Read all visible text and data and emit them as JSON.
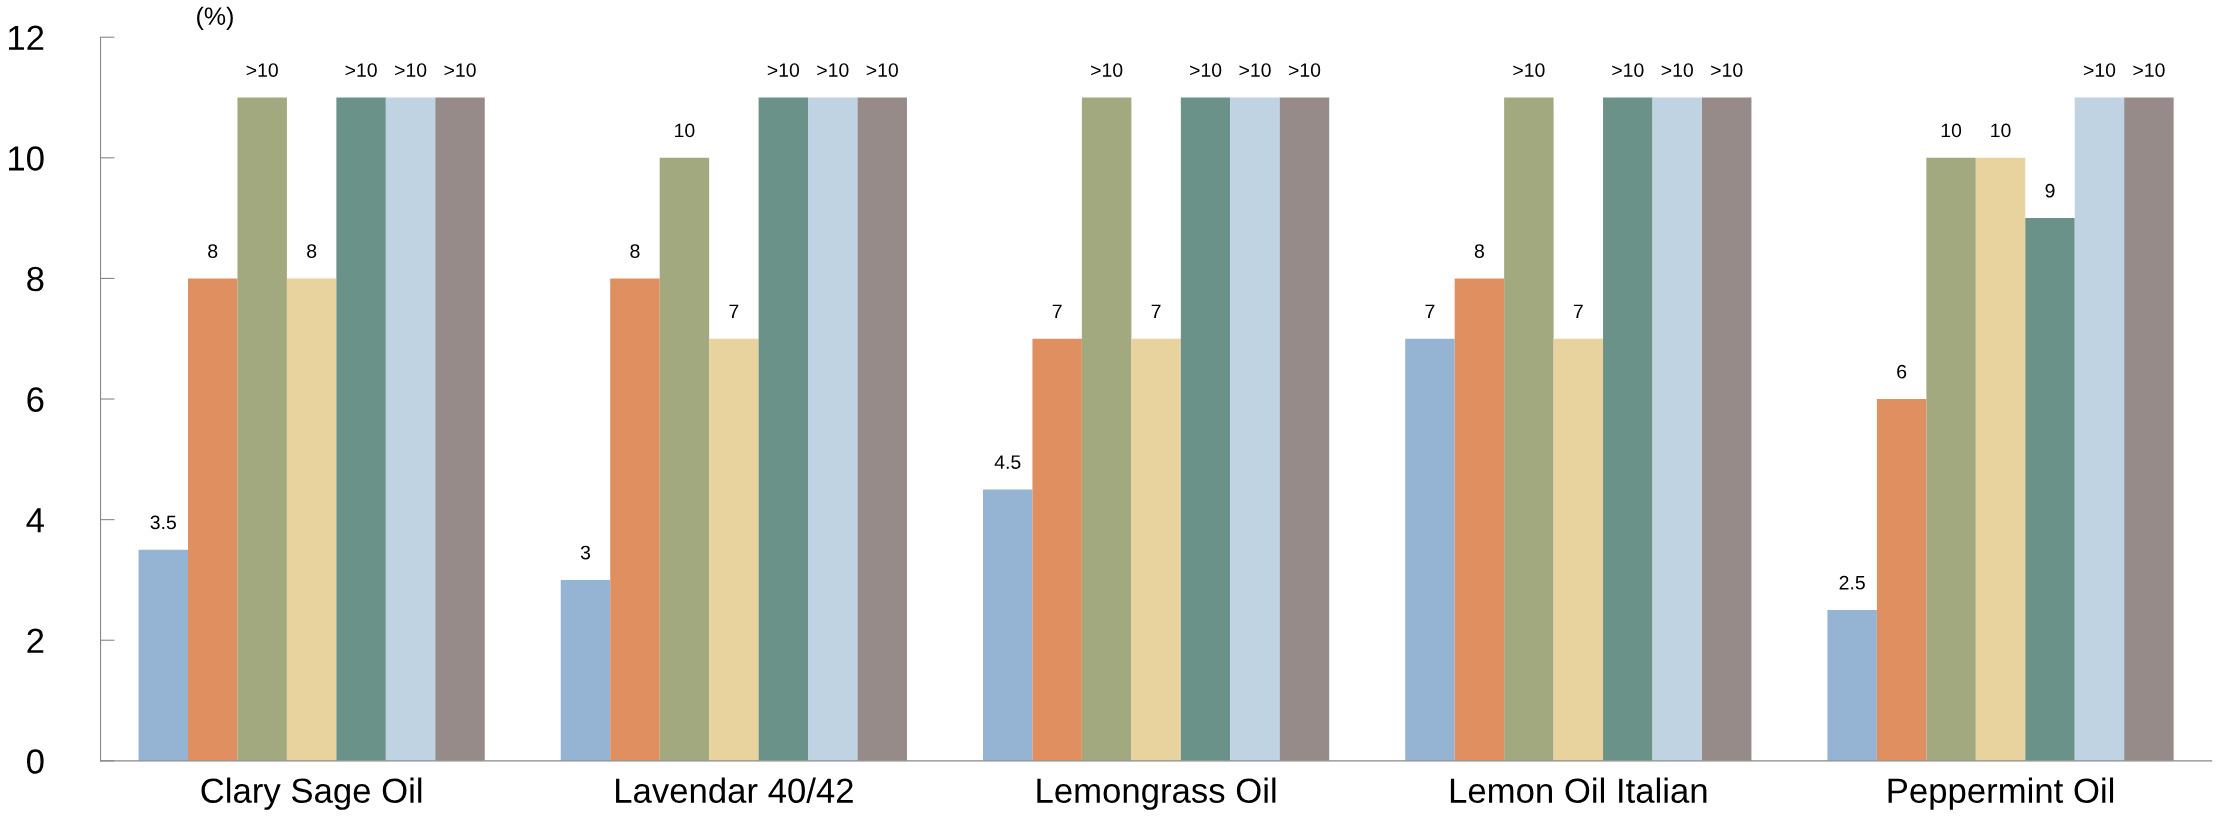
{
  "chart_data": {
    "type": "bar",
    "ylabel": "(%)",
    "categories": [
      "Clary Sage Oil",
      "Lavendar 40/42",
      "Lemongrass Oil",
      "Lemon Oil Italian",
      "Peppermint Oil"
    ],
    "series": [
      {
        "color": "#95b3d2",
        "values": [
          3.5,
          3,
          4.5,
          7,
          2.5
        ],
        "value_labels": [
          "3.5",
          "3",
          "4.5",
          "7",
          "2.5"
        ]
      },
      {
        "color": "#e09060",
        "values": [
          8,
          8,
          7,
          8,
          6
        ],
        "value_labels": [
          "8",
          "8",
          "7",
          "8",
          "6"
        ]
      },
      {
        "color": "#a3a97f",
        "values": [
          11,
          10,
          11,
          11,
          10
        ],
        "value_labels": [
          ">10",
          "10",
          ">10",
          ">10",
          "10"
        ]
      },
      {
        "color": "#e8d29e",
        "values": [
          8,
          7,
          7,
          7,
          10
        ],
        "value_labels": [
          "8",
          "7",
          "7",
          "7",
          "10"
        ]
      },
      {
        "color": "#6a9289",
        "values": [
          11,
          11,
          11,
          11,
          9
        ],
        "value_labels": [
          ">10",
          ">10",
          ">10",
          ">10",
          "9"
        ]
      },
      {
        "color": "#c0d3e3",
        "values": [
          11,
          11,
          11,
          11,
          11
        ],
        "value_labels": [
          ">10",
          ">10",
          ">10",
          ">10",
          ">10"
        ]
      },
      {
        "color": "#968b89",
        "values": [
          11,
          11,
          11,
          11,
          11
        ],
        "value_labels": [
          ">10",
          ">10",
          ">10",
          ">10",
          ">10"
        ]
      }
    ],
    "ylim": [
      0,
      12
    ],
    "yticks": [
      0,
      2,
      4,
      6,
      8,
      10,
      12
    ],
    "grid": false
  }
}
